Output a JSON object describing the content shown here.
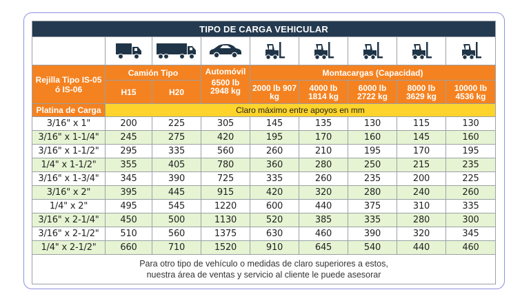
{
  "title": "TIPO DE CARGA VEHICULAR",
  "icons": [
    "truck-icon",
    "semi-truck-icon",
    "car-icon",
    "forklift-icon",
    "forklift-icon",
    "forklift-icon",
    "forklift-icon",
    "forklift-icon"
  ],
  "headers": {
    "grating": "Rejilla Tipo IS-05 ó IS-06",
    "truck_group": "Camión Tipo",
    "car": "Automóvil",
    "forklift_group": "Montacargas (Capacidad)",
    "h15": "H15",
    "h20": "H20",
    "car_cap": "6500 lb 2948 kg",
    "fork1": "2000 lb 907 kg",
    "fork2": "4000 lb 1814 kg",
    "fork3": "6000 lb 2722 kg",
    "fork4": "8000 lb 3629 kg",
    "fork5": "10000 lb 4536 kg",
    "bar": "Platina de Carga",
    "span_note": "Claro máximo entre apoyos en mm"
  },
  "rows": [
    [
      "3/16\" x 1\"",
      "200",
      "225",
      "305",
      "145",
      "135",
      "130",
      "115",
      "130"
    ],
    [
      "3/16\" x 1-1/4\"",
      "245",
      "275",
      "420",
      "195",
      "170",
      "160",
      "145",
      "160"
    ],
    [
      "3/16\" x 1-1/2\"",
      "295",
      "335",
      "560",
      "260",
      "210",
      "195",
      "170",
      "195"
    ],
    [
      "1/4\" x 1-1/2\"",
      "355",
      "405",
      "780",
      "360",
      "280",
      "250",
      "215",
      "235"
    ],
    [
      "3/16\" x 1-3/4\"",
      "345",
      "390",
      "725",
      "335",
      "260",
      "235",
      "200",
      "225"
    ],
    [
      "3/16\" x 2\"",
      "395",
      "445",
      "915",
      "420",
      "320",
      "280",
      "240",
      "260"
    ],
    [
      "1/4\" x 2\"",
      "495",
      "545",
      "1220",
      "600",
      "440",
      "375",
      "310",
      "335"
    ],
    [
      "3/16\" x 2-1/4\"",
      "450",
      "500",
      "1130",
      "520",
      "385",
      "335",
      "280",
      "300"
    ],
    [
      "3/16\" x 2-1/2\"",
      "510",
      "560",
      "1375",
      "630",
      "460",
      "390",
      "320",
      "345"
    ],
    [
      "1/4\" x 2-1/2\"",
      "660",
      "710",
      "1520",
      "910",
      "645",
      "540",
      "440",
      "460"
    ]
  ],
  "footer": {
    "line1": "Para otro tipo de vehículo o medidas de claro superiores a estos,",
    "line2": "nuestra área de ventas y servicio al cliente le puede asesorar"
  },
  "colors": {
    "title_bg": "#243a50",
    "orange": "#f58220",
    "yellow": "#fed42c",
    "green_row": "#e6f4d3",
    "border": "#8d8fe0"
  }
}
